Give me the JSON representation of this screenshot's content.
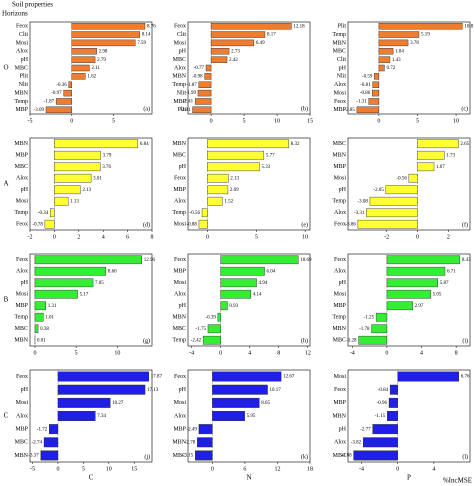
{
  "header": {
    "title": "Soil properties",
    "y_label": "Horizons",
    "rows": [
      "O",
      "A",
      "B",
      "C"
    ],
    "cols": [
      "C",
      "N",
      "P"
    ],
    "x_label": "%IncMSE"
  },
  "chart_data": [
    {
      "type": "bar",
      "panel": "(a)",
      "color": "#ee7d31",
      "categories": [
        "Feox",
        "Clit",
        "Mosi",
        "Alox",
        "pH",
        "MBC",
        "Plit",
        "Nlit",
        "MBN",
        "Temp",
        "MBP"
      ],
      "values": [
        8.76,
        8.14,
        7.59,
        2.98,
        2.79,
        2.11,
        1.62,
        -0.36,
        -0.97,
        -1.87,
        -3.09
      ],
      "xlim": [
        -5,
        9.6
      ],
      "xticks": [
        -5,
        0,
        5
      ]
    },
    {
      "type": "bar",
      "panel": "(b)",
      "color": "#ee7d31",
      "categories": [
        "Feox",
        "Clit",
        "Mosi",
        "pH",
        "MBC",
        "Alox",
        "MBN",
        "Temp",
        "Nlit",
        "MBP",
        "Plit"
      ],
      "values": [
        12.18,
        8.17,
        6.49,
        2.73,
        2.42,
        -0.77,
        -0.98,
        -1.87,
        -1.99,
        -2.41,
        -2.81
      ],
      "xlim": [
        -3.5,
        15
      ],
      "xticks": [
        0,
        5,
        10,
        15
      ]
    },
    {
      "type": "bar",
      "panel": "(c)",
      "color": "#ee7d31",
      "categories": [
        "Plit",
        "Temp",
        "MBN",
        "MBC",
        "Clit",
        "pH",
        "Nlit",
        "Alox",
        "Mosi",
        "Feox",
        "MBP"
      ],
      "values": [
        10.81,
        5.19,
        3.78,
        1.84,
        1.43,
        0.72,
        -0.59,
        -0.81,
        -0.86,
        -1.31,
        -2.85
      ],
      "xlim": [
        -4,
        11.8
      ],
      "xticks": [
        0,
        5,
        10
      ]
    },
    {
      "type": "bar",
      "panel": "(d)",
      "color": "#ffff33",
      "categories": [
        "MBN",
        "MBP",
        "MBC",
        "Alox",
        "pH",
        "Mosi",
        "Temp",
        "Feox"
      ],
      "values": [
        6.84,
        3.79,
        3.76,
        3.01,
        2.13,
        1.13,
        -0.34,
        -0.78
      ],
      "xlim": [
        -2,
        8
      ],
      "xticks": [
        -2,
        0,
        2,
        4,
        6,
        8
      ]
    },
    {
      "type": "bar",
      "panel": "(e)",
      "color": "#ffff33",
      "categories": [
        "MBN",
        "MBC",
        "pH",
        "Feox",
        "MBP",
        "Alox",
        "Temp",
        "Mosi"
      ],
      "values": [
        8.32,
        5.77,
        5.33,
        2.13,
        2.09,
        1.52,
        -0.56,
        -0.88
      ],
      "xlim": [
        -2,
        10.5
      ],
      "xticks": [
        0,
        5,
        10
      ]
    },
    {
      "type": "bar",
      "panel": "(f)",
      "color": "#ffff33",
      "categories": [
        "MBC",
        "MBN",
        "MBP",
        "Mosi",
        "pH",
        "Temp",
        "Alox",
        "Feox"
      ],
      "values": [
        2.65,
        1.73,
        1.07,
        -0.56,
        -2.05,
        -3.08,
        -3.31,
        -3.86
      ],
      "xlim": [
        -4.5,
        3.4
      ],
      "xticks": [
        -2,
        0,
        2
      ]
    },
    {
      "type": "bar",
      "panel": "(g)",
      "color": "#33ee33",
      "categories": [
        "Feox",
        "Alox",
        "pH",
        "Mosi",
        "MBP",
        "Temp",
        "MBC",
        "MBN"
      ],
      "values": [
        12.96,
        8.6,
        7.05,
        5.17,
        1.31,
        1.01,
        0.38,
        0.01
      ],
      "value_labels": [
        "12.96",
        "8.60",
        "7.05",
        "5.17",
        "1.31",
        "1.01",
        "0.38",
        "0.01"
      ],
      "xlim": [
        -0.6,
        14.2
      ],
      "xticks": [
        0,
        5,
        10
      ]
    },
    {
      "type": "bar",
      "panel": "(h)",
      "color": "#33ee33",
      "categories": [
        "Feox",
        "MBP",
        "Mosi",
        "Alox",
        "pH",
        "MBN",
        "MBC",
        "Temp"
      ],
      "values": [
        10.69,
        6.04,
        4.94,
        4.14,
        0.93,
        -0.39,
        -1.75,
        -2.42
      ],
      "xlim": [
        -4.5,
        12.3
      ],
      "xticks": [
        -4,
        0,
        4,
        8,
        12
      ]
    },
    {
      "type": "bar",
      "panel": "(i)",
      "color": "#33ee33",
      "categories": [
        "Feox",
        "Alox",
        "pH",
        "Mosi",
        "MBP",
        "Temp",
        "MBN",
        "MBC"
      ],
      "values": [
        8.43,
        6.71,
        5.87,
        5.05,
        2.97,
        -1.25,
        -1.78,
        -3.28
      ],
      "xlim": [
        -4.5,
        9.6
      ],
      "xticks": [
        -4,
        0,
        4,
        8
      ]
    },
    {
      "type": "bar",
      "panel": "(j)",
      "color": "#1f1fe6",
      "categories": [
        "Feox",
        "pH",
        "Mosi",
        "Alox",
        "MBP",
        "MBC",
        "MBN"
      ],
      "values": [
        17.87,
        17.13,
        10.27,
        7.34,
        -1.72,
        -2.74,
        -3.37
      ],
      "xlim": [
        -5.5,
        18.5
      ],
      "xticks": [
        -5,
        0,
        5,
        10,
        15
      ]
    },
    {
      "type": "bar",
      "panel": "(k)",
      "color": "#1f1fe6",
      "categories": [
        "Feox",
        "pH",
        "Mosi",
        "Alox",
        "MBP",
        "MBN",
        "MBC"
      ],
      "values": [
        12.67,
        10.17,
        8.65,
        5.95,
        -2.49,
        -2.78,
        -3.15
      ],
      "xlim": [
        -4.5,
        18
      ],
      "xticks": [
        0,
        6,
        12,
        18
      ]
    },
    {
      "type": "bar",
      "panel": "(l)",
      "color": "#1f1fe6",
      "categories": [
        "Mosi",
        "Feox",
        "MBP",
        "MBN",
        "pH",
        "Alox",
        "MBC"
      ],
      "values": [
        6.76,
        -0.84,
        -0.96,
        -1.15,
        -2.77,
        -3.82,
        -4.88
      ],
      "xlim": [
        -5.5,
        8
      ],
      "xticks": [
        -4,
        0,
        4
      ]
    }
  ]
}
